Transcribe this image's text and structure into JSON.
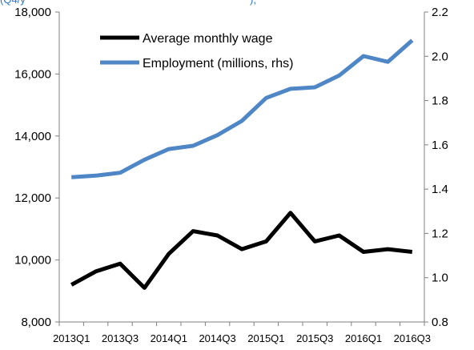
{
  "chart_data": {
    "type": "line",
    "categories": [
      "2013Q1",
      "2013Q2",
      "2013Q3",
      "2013Q4",
      "2014Q1",
      "2014Q2",
      "2014Q3",
      "2014Q4",
      "2015Q1",
      "2015Q2",
      "2015Q3",
      "2015Q4",
      "2016Q1",
      "2016Q2",
      "2016Q3"
    ],
    "x_tick_labels": [
      "2013Q1",
      "2013Q3",
      "2014Q1",
      "2014Q3",
      "2015Q1",
      "2015Q3",
      "2016Q1",
      "2016Q3"
    ],
    "series": [
      {
        "name": "Average monthly wage",
        "axis": "left",
        "color": "#000000",
        "values": [
          9200,
          9630,
          9880,
          9100,
          10200,
          10930,
          10790,
          10350,
          10600,
          11520,
          10600,
          10790,
          10260,
          10350,
          10260
        ]
      },
      {
        "name": "Employment (millions, rhs)",
        "axis": "right",
        "color": "#4f86c6",
        "values": [
          1.454,
          1.461,
          1.474,
          1.533,
          1.581,
          1.596,
          1.644,
          1.708,
          1.812,
          1.853,
          1.86,
          1.913,
          2.001,
          1.975,
          2.072
        ]
      }
    ],
    "y_left": {
      "min": 8000,
      "max": 18000,
      "ticks": [
        "8,000",
        "10,000",
        "12,000",
        "14,000",
        "16,000",
        "18,000"
      ]
    },
    "y_right": {
      "min": 0.8,
      "max": 2.2,
      "ticks": [
        "0.8",
        "1.0",
        "1.2",
        "1.4",
        "1.6",
        "1.8",
        "2.0",
        "2.2"
      ]
    },
    "legend_position": "top-left",
    "grid": false
  }
}
